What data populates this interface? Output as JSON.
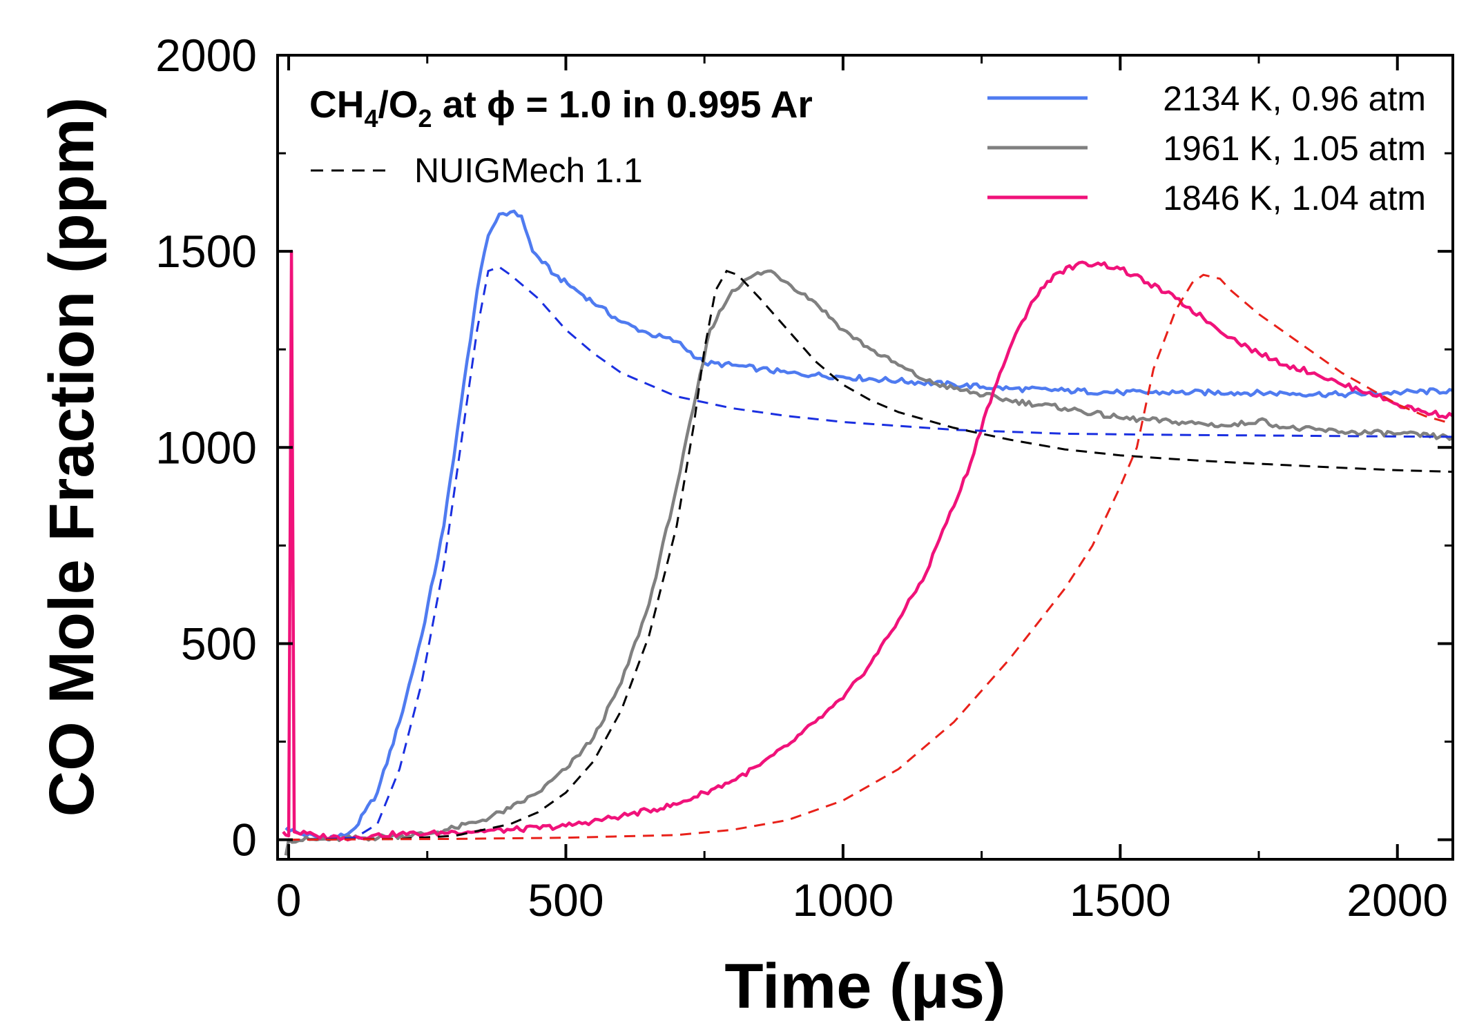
{
  "chart_data": {
    "type": "line",
    "title": "",
    "xlabel": "Time (μs)",
    "ylabel": "CO Mole Fraction (ppm)",
    "xlim": [
      -20,
      2100
    ],
    "ylim": [
      -50,
      2000
    ],
    "xticks": [
      0,
      500,
      1000,
      1500,
      2000
    ],
    "yticks": [
      0,
      500,
      1000,
      1500,
      2000
    ],
    "xtick_labels": [
      "0",
      "500",
      "1000",
      "1500",
      "2000"
    ],
    "ytick_labels": [
      "0",
      "500",
      "1000",
      "1500",
      "2000"
    ],
    "condition": {
      "prefix": "CH",
      "sub1": "4",
      "mid": "/O",
      "sub2": "2",
      "suffix": " at ϕ = 1.0 in 0.995 Ar"
    },
    "model_legend": "NUIGMech 1.1",
    "legend_position": "top-right",
    "series": [
      {
        "name": "2134 K, 0.96 atm",
        "style": "solid",
        "color": "#4f7bf0",
        "points": [
          [
            -5,
            30
          ],
          [
            20,
            15
          ],
          [
            60,
            5
          ],
          [
            100,
            10
          ],
          [
            120,
            30
          ],
          [
            160,
            120
          ],
          [
            200,
            300
          ],
          [
            240,
            520
          ],
          [
            280,
            800
          ],
          [
            310,
            1100
          ],
          [
            340,
            1400
          ],
          [
            360,
            1540
          ],
          [
            380,
            1595
          ],
          [
            400,
            1600
          ],
          [
            420,
            1590
          ],
          [
            440,
            1500
          ],
          [
            480,
            1440
          ],
          [
            520,
            1400
          ],
          [
            560,
            1360
          ],
          [
            600,
            1320
          ],
          [
            650,
            1290
          ],
          [
            700,
            1270
          ],
          [
            750,
            1215
          ],
          [
            800,
            1210
          ],
          [
            850,
            1200
          ],
          [
            900,
            1190
          ],
          [
            950,
            1185
          ],
          [
            1000,
            1180
          ],
          [
            1100,
            1170
          ],
          [
            1200,
            1160
          ],
          [
            1300,
            1150
          ],
          [
            1400,
            1145
          ],
          [
            1500,
            1140
          ],
          [
            1600,
            1140
          ],
          [
            1700,
            1140
          ],
          [
            1800,
            1138
          ],
          [
            1900,
            1135
          ],
          [
            2000,
            1140
          ],
          [
            2100,
            1145
          ]
        ]
      },
      {
        "name": "1961 K, 1.05 atm",
        "style": "solid",
        "color": "#808080",
        "points": [
          [
            -5,
            -40
          ],
          [
            0,
            0
          ],
          [
            50,
            0
          ],
          [
            150,
            5
          ],
          [
            250,
            15
          ],
          [
            300,
            30
          ],
          [
            350,
            50
          ],
          [
            400,
            80
          ],
          [
            450,
            120
          ],
          [
            500,
            180
          ],
          [
            550,
            260
          ],
          [
            600,
            400
          ],
          [
            650,
            600
          ],
          [
            700,
            900
          ],
          [
            730,
            1100
          ],
          [
            760,
            1300
          ],
          [
            800,
            1400
          ],
          [
            840,
            1440
          ],
          [
            870,
            1450
          ],
          [
            900,
            1420
          ],
          [
            950,
            1370
          ],
          [
            1000,
            1300
          ],
          [
            1050,
            1250
          ],
          [
            1100,
            1210
          ],
          [
            1150,
            1170
          ],
          [
            1200,
            1150
          ],
          [
            1300,
            1120
          ],
          [
            1400,
            1100
          ],
          [
            1500,
            1075
          ],
          [
            1600,
            1065
          ],
          [
            1700,
            1055
          ],
          [
            1750,
            1070
          ],
          [
            1800,
            1050
          ],
          [
            1900,
            1040
          ],
          [
            2000,
            1035
          ],
          [
            2100,
            1025
          ]
        ]
      },
      {
        "name": "1846 K, 1.04 atm",
        "style": "solid",
        "color": "#f0127a",
        "points": [
          [
            -10,
            20
          ],
          [
            0,
            10
          ],
          [
            5,
            1500
          ],
          [
            10,
            20
          ],
          [
            50,
            10
          ],
          [
            100,
            5
          ],
          [
            150,
            10
          ],
          [
            200,
            15
          ],
          [
            250,
            15
          ],
          [
            300,
            20
          ],
          [
            400,
            25
          ],
          [
            500,
            35
          ],
          [
            600,
            60
          ],
          [
            700,
            90
          ],
          [
            750,
            120
          ],
          [
            800,
            150
          ],
          [
            850,
            190
          ],
          [
            900,
            240
          ],
          [
            950,
            300
          ],
          [
            1000,
            360
          ],
          [
            1050,
            450
          ],
          [
            1100,
            560
          ],
          [
            1150,
            680
          ],
          [
            1180,
            790
          ],
          [
            1200,
            850
          ],
          [
            1230,
            960
          ],
          [
            1260,
            1100
          ],
          [
            1300,
            1250
          ],
          [
            1340,
            1370
          ],
          [
            1380,
            1440
          ],
          [
            1420,
            1465
          ],
          [
            1460,
            1470
          ],
          [
            1500,
            1455
          ],
          [
            1550,
            1420
          ],
          [
            1600,
            1380
          ],
          [
            1650,
            1330
          ],
          [
            1700,
            1280
          ],
          [
            1750,
            1240
          ],
          [
            1800,
            1210
          ],
          [
            1850,
            1190
          ],
          [
            1900,
            1160
          ],
          [
            1950,
            1140
          ],
          [
            2000,
            1110
          ],
          [
            2050,
            1090
          ],
          [
            2100,
            1080
          ]
        ]
      },
      {
        "name": "NUIGMech 1.1 (2134 K)",
        "style": "dashed",
        "color": "#1a2fe0",
        "points": [
          [
            0,
            0
          ],
          [
            60,
            1
          ],
          [
            120,
            5
          ],
          [
            160,
            40
          ],
          [
            200,
            180
          ],
          [
            240,
            400
          ],
          [
            280,
            700
          ],
          [
            310,
            1000
          ],
          [
            340,
            1300
          ],
          [
            360,
            1450
          ],
          [
            380,
            1460
          ],
          [
            400,
            1440
          ],
          [
            450,
            1380
          ],
          [
            500,
            1300
          ],
          [
            550,
            1240
          ],
          [
            600,
            1190
          ],
          [
            650,
            1160
          ],
          [
            700,
            1130
          ],
          [
            800,
            1100
          ],
          [
            900,
            1080
          ],
          [
            1000,
            1065
          ],
          [
            1200,
            1045
          ],
          [
            1400,
            1035
          ],
          [
            1600,
            1032
          ],
          [
            1800,
            1030
          ],
          [
            2000,
            1028
          ],
          [
            2100,
            1027
          ]
        ]
      },
      {
        "name": "NUIGMech 1.1 (1961 K)",
        "style": "dashed",
        "color": "#000000",
        "points": [
          [
            0,
            0
          ],
          [
            200,
            2
          ],
          [
            300,
            10
          ],
          [
            400,
            40
          ],
          [
            450,
            70
          ],
          [
            500,
            120
          ],
          [
            550,
            200
          ],
          [
            600,
            330
          ],
          [
            650,
            520
          ],
          [
            700,
            800
          ],
          [
            730,
            1050
          ],
          [
            750,
            1250
          ],
          [
            770,
            1400
          ],
          [
            790,
            1450
          ],
          [
            810,
            1440
          ],
          [
            850,
            1380
          ],
          [
            900,
            1300
          ],
          [
            950,
            1220
          ],
          [
            1000,
            1160
          ],
          [
            1050,
            1120
          ],
          [
            1100,
            1090
          ],
          [
            1200,
            1050
          ],
          [
            1300,
            1020
          ],
          [
            1400,
            995
          ],
          [
            1500,
            980
          ],
          [
            1600,
            970
          ],
          [
            1700,
            962
          ],
          [
            1800,
            955
          ],
          [
            1900,
            948
          ],
          [
            2000,
            942
          ],
          [
            2100,
            938
          ]
        ]
      },
      {
        "name": "NUIGMech 1.1 (1846 K)",
        "style": "dashed",
        "color": "#e8211a",
        "points": [
          [
            0,
            0
          ],
          [
            300,
            2
          ],
          [
            500,
            5
          ],
          [
            700,
            12
          ],
          [
            800,
            25
          ],
          [
            900,
            50
          ],
          [
            1000,
            100
          ],
          [
            1100,
            180
          ],
          [
            1200,
            300
          ],
          [
            1300,
            460
          ],
          [
            1400,
            640
          ],
          [
            1450,
            750
          ],
          [
            1500,
            900
          ],
          [
            1530,
            1000
          ],
          [
            1560,
            1200
          ],
          [
            1600,
            1350
          ],
          [
            1630,
            1420
          ],
          [
            1650,
            1440
          ],
          [
            1680,
            1430
          ],
          [
            1700,
            1400
          ],
          [
            1750,
            1340
          ],
          [
            1800,
            1290
          ],
          [
            1850,
            1240
          ],
          [
            1900,
            1190
          ],
          [
            1950,
            1150
          ],
          [
            2000,
            1110
          ],
          [
            2050,
            1080
          ],
          [
            2100,
            1060
          ]
        ]
      }
    ]
  }
}
